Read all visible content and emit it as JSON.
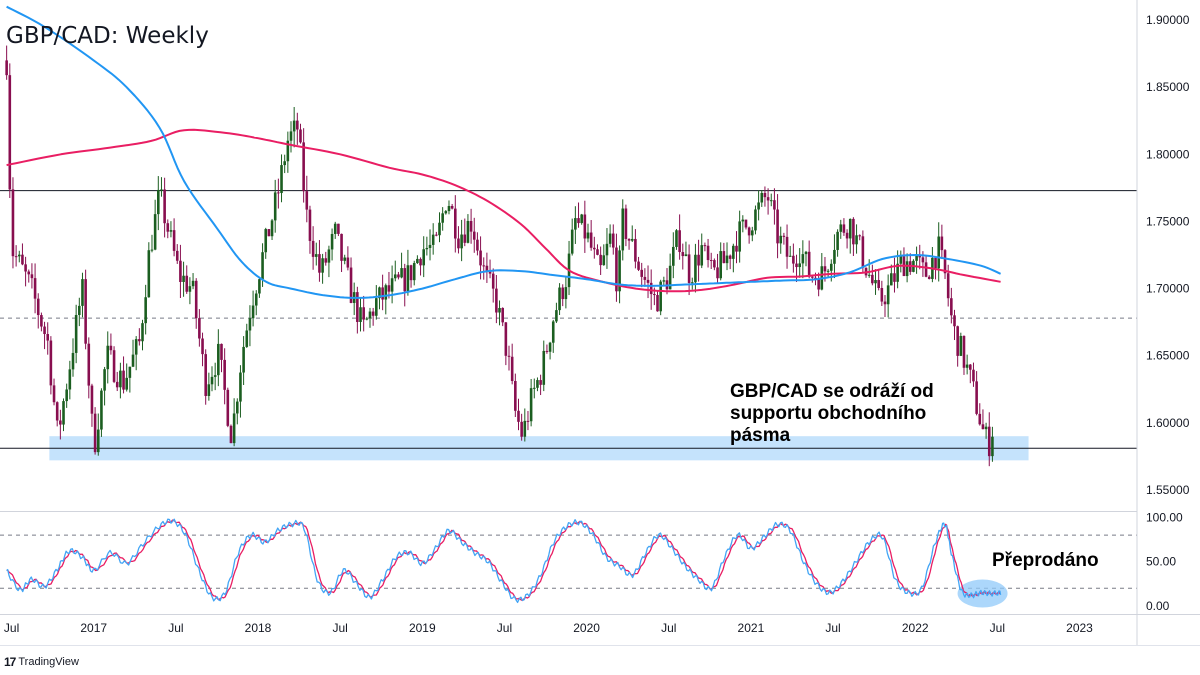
{
  "title": "GBP/CAD: Weekly",
  "brand": "TradingView",
  "brand_logo": "tradingview-logo-icon",
  "colors": {
    "up": "#26a69a",
    "down": "#ef5350",
    "candle_up": "#1b5e20",
    "candle_down": "#880e4f",
    "ma_fast": "#2196f3",
    "ma_slow": "#e91e63",
    "stoch_k": "#42a5f5",
    "stoch_d": "#e91e63",
    "zone": "#bbdefb",
    "oversold_ellipse": "#90caf9"
  },
  "chart_data": [
    {
      "type": "candlestick",
      "title": "GBP/CAD: Weekly",
      "ylim": [
        1.535,
        1.915
      ],
      "y_ticks": [
        "1.90000",
        "1.85000",
        "1.80000",
        "1.75000",
        "1.70000",
        "1.65000",
        "1.60000",
        "1.55000"
      ],
      "y_tick_values": [
        1.9,
        1.85,
        1.8,
        1.75,
        1.7,
        1.65,
        1.6,
        1.55
      ],
      "x_ticks": [
        "Jul",
        "2017",
        "Jul",
        "2018",
        "Jul",
        "2019",
        "Jul",
        "2020",
        "Jul",
        "2021",
        "Jul",
        "2022",
        "Jul",
        "2023"
      ],
      "x_range": [
        2016.46,
        2023.35
      ],
      "resistance_level": 1.773,
      "mid_level_dashed": 1.678,
      "support_level": 1.581,
      "support_zone": [
        1.572,
        1.59
      ],
      "support_zone_x": [
        2016.73,
        2022.69
      ],
      "price_anchors": [
        [
          2016.47,
          1.87
        ],
        [
          2016.5,
          1.73
        ],
        [
          2016.62,
          1.7
        ],
        [
          2016.72,
          1.66
        ],
        [
          2016.78,
          1.59
        ],
        [
          2016.85,
          1.64
        ],
        [
          2016.93,
          1.7
        ],
        [
          2017.0,
          1.58
        ],
        [
          2017.08,
          1.65
        ],
        [
          2017.18,
          1.63
        ],
        [
          2017.28,
          1.66
        ],
        [
          2017.33,
          1.72
        ],
        [
          2017.4,
          1.77
        ],
        [
          2017.46,
          1.74
        ],
        [
          2017.52,
          1.71
        ],
        [
          2017.6,
          1.7
        ],
        [
          2017.68,
          1.63
        ],
        [
          2017.76,
          1.65
        ],
        [
          2017.84,
          1.59
        ],
        [
          2017.9,
          1.65
        ],
        [
          2017.96,
          1.69
        ],
        [
          2018.06,
          1.74
        ],
        [
          2018.12,
          1.77
        ],
        [
          2018.18,
          1.81
        ],
        [
          2018.24,
          1.82
        ],
        [
          2018.3,
          1.75
        ],
        [
          2018.38,
          1.71
        ],
        [
          2018.47,
          1.74
        ],
        [
          2018.56,
          1.7
        ],
        [
          2018.64,
          1.67
        ],
        [
          2018.72,
          1.69
        ],
        [
          2018.82,
          1.7
        ],
        [
          2018.92,
          1.71
        ],
        [
          2019.0,
          1.73
        ],
        [
          2019.08,
          1.73
        ],
        [
          2019.15,
          1.77
        ],
        [
          2019.22,
          1.74
        ],
        [
          2019.3,
          1.75
        ],
        [
          2019.38,
          1.71
        ],
        [
          2019.45,
          1.69
        ],
        [
          2019.52,
          1.65
        ],
        [
          2019.56,
          1.61
        ],
        [
          2019.61,
          1.59
        ],
        [
          2019.67,
          1.62
        ],
        [
          2019.73,
          1.64
        ],
        [
          2019.8,
          1.68
        ],
        [
          2019.88,
          1.71
        ],
        [
          2019.93,
          1.75
        ],
        [
          2020.0,
          1.74
        ],
        [
          2020.08,
          1.71
        ],
        [
          2020.15,
          1.74
        ],
        [
          2020.19,
          1.7
        ],
        [
          2020.22,
          1.75
        ],
        [
          2020.28,
          1.73
        ],
        [
          2020.34,
          1.71
        ],
        [
          2020.42,
          1.69
        ],
        [
          2020.5,
          1.71
        ],
        [
          2020.56,
          1.74
        ],
        [
          2020.63,
          1.71
        ],
        [
          2020.7,
          1.73
        ],
        [
          2020.76,
          1.71
        ],
        [
          2020.84,
          1.72
        ],
        [
          2020.92,
          1.74
        ],
        [
          2021.0,
          1.75
        ],
        [
          2021.05,
          1.76
        ],
        [
          2021.1,
          1.77
        ],
        [
          2021.16,
          1.74
        ],
        [
          2021.24,
          1.72
        ],
        [
          2021.3,
          1.73
        ],
        [
          2021.36,
          1.71
        ],
        [
          2021.44,
          1.71
        ],
        [
          2021.52,
          1.74
        ],
        [
          2021.6,
          1.75
        ],
        [
          2021.66,
          1.73
        ],
        [
          2021.72,
          1.71
        ],
        [
          2021.78,
          1.69
        ],
        [
          2021.84,
          1.7
        ],
        [
          2021.92,
          1.72
        ],
        [
          2022.0,
          1.72
        ],
        [
          2022.06,
          1.71
        ],
        [
          2022.1,
          1.72
        ],
        [
          2022.14,
          1.73
        ],
        [
          2022.18,
          1.71
        ],
        [
          2022.23,
          1.67
        ],
        [
          2022.29,
          1.65
        ],
        [
          2022.34,
          1.63
        ],
        [
          2022.38,
          1.61
        ],
        [
          2022.42,
          1.59
        ],
        [
          2022.45,
          1.585
        ],
        [
          2022.48,
          1.6
        ]
      ],
      "ma_fast_points": [
        [
          2016.47,
          1.91
        ],
        [
          2016.7,
          1.895
        ],
        [
          2017.0,
          1.87
        ],
        [
          2017.2,
          1.85
        ],
        [
          2017.4,
          1.82
        ],
        [
          2017.55,
          1.78
        ],
        [
          2017.75,
          1.745
        ],
        [
          2017.9,
          1.72
        ],
        [
          2018.05,
          1.705
        ],
        [
          2018.2,
          1.7
        ],
        [
          2018.4,
          1.695
        ],
        [
          2018.6,
          1.693
        ],
        [
          2018.8,
          1.695
        ],
        [
          2019.0,
          1.7
        ],
        [
          2019.2,
          1.707
        ],
        [
          2019.4,
          1.713
        ],
        [
          2019.6,
          1.713
        ],
        [
          2019.8,
          1.71
        ],
        [
          2020.0,
          1.707
        ],
        [
          2020.2,
          1.703
        ],
        [
          2020.4,
          1.702
        ],
        [
          2020.6,
          1.703
        ],
        [
          2020.8,
          1.704
        ],
        [
          2021.0,
          1.705
        ],
        [
          2021.2,
          1.706
        ],
        [
          2021.4,
          1.707
        ],
        [
          2021.6,
          1.712
        ],
        [
          2021.8,
          1.722
        ],
        [
          2022.0,
          1.725
        ],
        [
          2022.2,
          1.722
        ],
        [
          2022.4,
          1.717
        ],
        [
          2022.52,
          1.711
        ]
      ],
      "ma_slow_points": [
        [
          2016.47,
          1.792
        ],
        [
          2016.8,
          1.8
        ],
        [
          2017.1,
          1.805
        ],
        [
          2017.35,
          1.81
        ],
        [
          2017.55,
          1.818
        ],
        [
          2017.8,
          1.816
        ],
        [
          2018.0,
          1.812
        ],
        [
          2018.2,
          1.807
        ],
        [
          2018.5,
          1.8
        ],
        [
          2018.8,
          1.79
        ],
        [
          2019.0,
          1.785
        ],
        [
          2019.2,
          1.777
        ],
        [
          2019.4,
          1.765
        ],
        [
          2019.6,
          1.748
        ],
        [
          2019.75,
          1.73
        ],
        [
          2019.9,
          1.713
        ],
        [
          2020.1,
          1.705
        ],
        [
          2020.3,
          1.7
        ],
        [
          2020.5,
          1.698
        ],
        [
          2020.7,
          1.699
        ],
        [
          2020.9,
          1.703
        ],
        [
          2021.1,
          1.708
        ],
        [
          2021.3,
          1.709
        ],
        [
          2021.5,
          1.711
        ],
        [
          2021.7,
          1.712
        ],
        [
          2021.9,
          1.717
        ],
        [
          2022.1,
          1.715
        ],
        [
          2022.3,
          1.71
        ],
        [
          2022.52,
          1.705
        ]
      ],
      "annotation": [
        "GBP/CAD se odráží od",
        "supportu obchodního",
        "pásma"
      ]
    },
    {
      "type": "line",
      "name": "stochastic",
      "ylim": [
        -8,
        105
      ],
      "y_ticks": [
        "100.00",
        "50.00",
        "0.00"
      ],
      "y_tick_values": [
        100,
        50,
        0
      ],
      "overbought_level": 80,
      "oversold_level": 20,
      "k_points": [
        [
          2016.47,
          40
        ],
        [
          2016.55,
          18
        ],
        [
          2016.62,
          30
        ],
        [
          2016.7,
          22
        ],
        [
          2016.78,
          42
        ],
        [
          2016.85,
          62
        ],
        [
          2016.93,
          55
        ],
        [
          2017.0,
          40
        ],
        [
          2017.1,
          60
        ],
        [
          2017.2,
          48
        ],
        [
          2017.3,
          70
        ],
        [
          2017.4,
          90
        ],
        [
          2017.48,
          96
        ],
        [
          2017.56,
          80
        ],
        [
          2017.64,
          40
        ],
        [
          2017.72,
          10
        ],
        [
          2017.8,
          15
        ],
        [
          2017.88,
          60
        ],
        [
          2017.96,
          80
        ],
        [
          2018.04,
          72
        ],
        [
          2018.12,
          85
        ],
        [
          2018.2,
          92
        ],
        [
          2018.28,
          88
        ],
        [
          2018.36,
          30
        ],
        [
          2018.44,
          15
        ],
        [
          2018.52,
          40
        ],
        [
          2018.6,
          25
        ],
        [
          2018.68,
          10
        ],
        [
          2018.76,
          30
        ],
        [
          2018.84,
          55
        ],
        [
          2018.92,
          60
        ],
        [
          2019.0,
          48
        ],
        [
          2019.08,
          65
        ],
        [
          2019.16,
          85
        ],
        [
          2019.24,
          72
        ],
        [
          2019.32,
          60
        ],
        [
          2019.4,
          50
        ],
        [
          2019.48,
          28
        ],
        [
          2019.56,
          8
        ],
        [
          2019.64,
          12
        ],
        [
          2019.72,
          35
        ],
        [
          2019.8,
          72
        ],
        [
          2019.88,
          90
        ],
        [
          2019.96,
          94
        ],
        [
          2020.04,
          80
        ],
        [
          2020.12,
          55
        ],
        [
          2020.2,
          45
        ],
        [
          2020.28,
          35
        ],
        [
          2020.36,
          60
        ],
        [
          2020.44,
          80
        ],
        [
          2020.52,
          65
        ],
        [
          2020.6,
          45
        ],
        [
          2020.68,
          30
        ],
        [
          2020.76,
          20
        ],
        [
          2020.84,
          55
        ],
        [
          2020.92,
          80
        ],
        [
          2021.0,
          65
        ],
        [
          2021.08,
          78
        ],
        [
          2021.16,
          92
        ],
        [
          2021.24,
          85
        ],
        [
          2021.32,
          50
        ],
        [
          2021.4,
          25
        ],
        [
          2021.48,
          15
        ],
        [
          2021.56,
          28
        ],
        [
          2021.64,
          50
        ],
        [
          2021.72,
          72
        ],
        [
          2021.8,
          78
        ],
        [
          2021.88,
          30
        ],
        [
          2021.96,
          15
        ],
        [
          2022.04,
          20
        ],
        [
          2022.12,
          70
        ],
        [
          2022.18,
          92
        ],
        [
          2022.22,
          60
        ],
        [
          2022.28,
          18
        ],
        [
          2022.34,
          12
        ],
        [
          2022.4,
          15
        ],
        [
          2022.46,
          14
        ],
        [
          2022.52,
          15
        ]
      ],
      "annotation": "Přeprodáno"
    }
  ]
}
